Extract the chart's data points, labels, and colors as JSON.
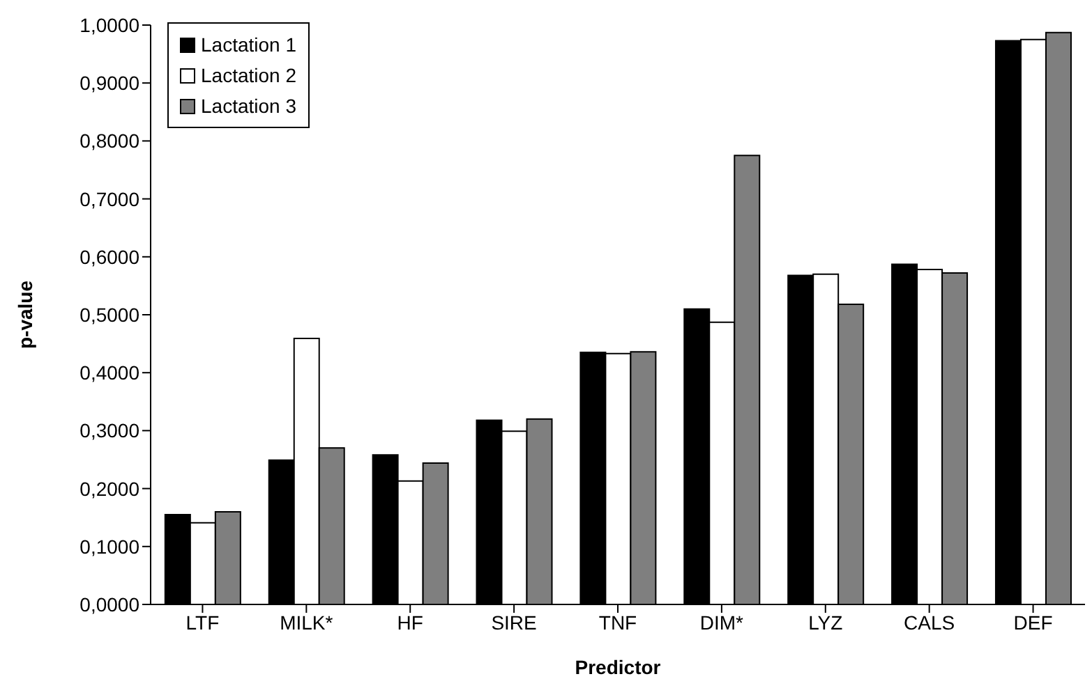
{
  "chart_data": {
    "type": "bar",
    "xlabel": "Predictor",
    "ylabel": "p-value",
    "categories": [
      "LTF",
      "MILK*",
      "HF",
      "SIRE",
      "TNF",
      "DIM*",
      "LYZ",
      "CALS",
      "DEF"
    ],
    "series": [
      {
        "name": "Lactation 1",
        "color": "#000000",
        "values": [
          0.155,
          0.249,
          0.258,
          0.318,
          0.435,
          0.51,
          0.568,
          0.587,
          0.973
        ]
      },
      {
        "name": "Lactation 2",
        "color": "#ffffff",
        "values": [
          0.141,
          0.459,
          0.213,
          0.299,
          0.433,
          0.487,
          0.57,
          0.578,
          0.975
        ]
      },
      {
        "name": "Lactation 3",
        "color": "#7f7f7f",
        "values": [
          0.16,
          0.27,
          0.244,
          0.32,
          0.436,
          0.775,
          0.518,
          0.572,
          0.987
        ]
      }
    ],
    "ylim": [
      0,
      1
    ],
    "yticks": [
      {
        "value": 0,
        "label": "0,0000"
      },
      {
        "value": 0.1,
        "label": "0,1000"
      },
      {
        "value": 0.2,
        "label": "0,2000"
      },
      {
        "value": 0.3,
        "label": "0,3000"
      },
      {
        "value": 0.4,
        "label": "0,4000"
      },
      {
        "value": 0.5,
        "label": "0,5000"
      },
      {
        "value": 0.6,
        "label": "0,6000"
      },
      {
        "value": 0.7,
        "label": "0,7000"
      },
      {
        "value": 0.8,
        "label": "0,8000"
      },
      {
        "value": 0.9,
        "label": "0,9000"
      },
      {
        "value": 1,
        "label": "1,0000"
      }
    ],
    "grid": false,
    "legend": "top left"
  }
}
